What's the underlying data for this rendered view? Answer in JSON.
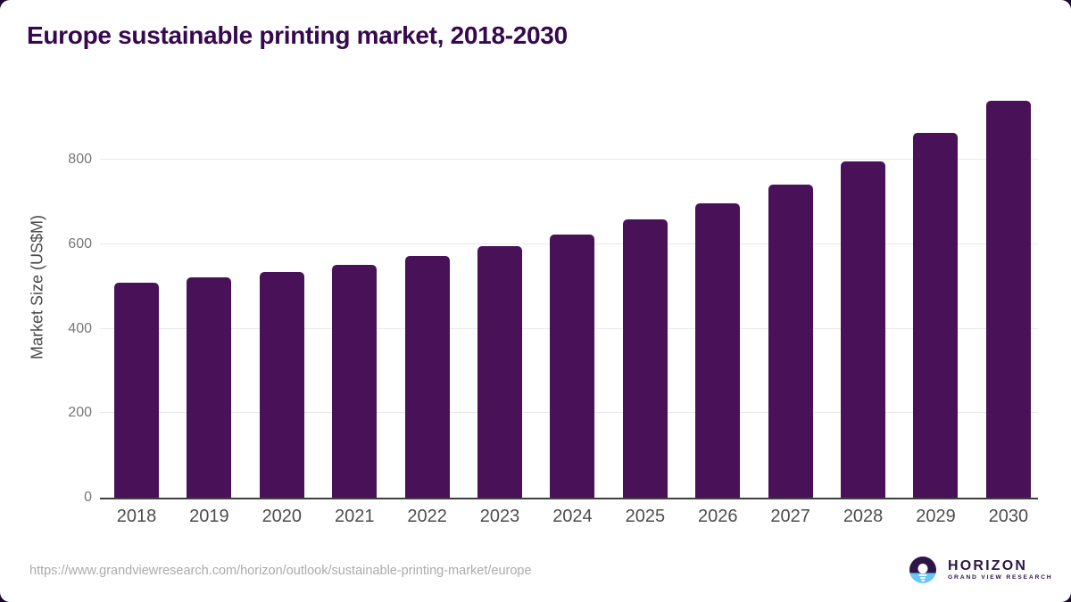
{
  "page_title": "Europe sustainable printing market, 2018-2030",
  "chart_data": {
    "type": "bar",
    "title": "Europe sustainable printing market, 2018-2030",
    "xlabel": "",
    "ylabel": "Market Size (US$M)",
    "categories": [
      "2018",
      "2019",
      "2020",
      "2021",
      "2022",
      "2023",
      "2024",
      "2025",
      "2026",
      "2027",
      "2028",
      "2029",
      "2030"
    ],
    "values": [
      509,
      522,
      535,
      551,
      572,
      596,
      623,
      658,
      697,
      742,
      797,
      864,
      940
    ],
    "yticks": [
      0,
      200,
      400,
      600,
      800
    ],
    "ylim": [
      0,
      967
    ],
    "grid": true,
    "legend": false,
    "bar_color": "#481158",
    "unit": "US$M"
  },
  "footer": {
    "source_url": "https://www.grandviewresearch.com/horizon/outlook/sustainable-printing-market/europe",
    "logo": {
      "brand_name": "HORIZON",
      "brand_subtitle": "GRAND VIEW RESEARCH",
      "icon": "sunset-horizon-icon",
      "purple": "#2d1547",
      "blue": "#67c7f0"
    }
  },
  "colors": {
    "title": "#36094f",
    "bar": "#481158",
    "gridline": "#e9e9e9",
    "axis_line": "#404040",
    "x_tick_label": "#4d4d4d",
    "y_tick_label": "#777777",
    "source_url": "#ababab",
    "card_background": "#ffffff",
    "page_background": "#1c0731"
  }
}
